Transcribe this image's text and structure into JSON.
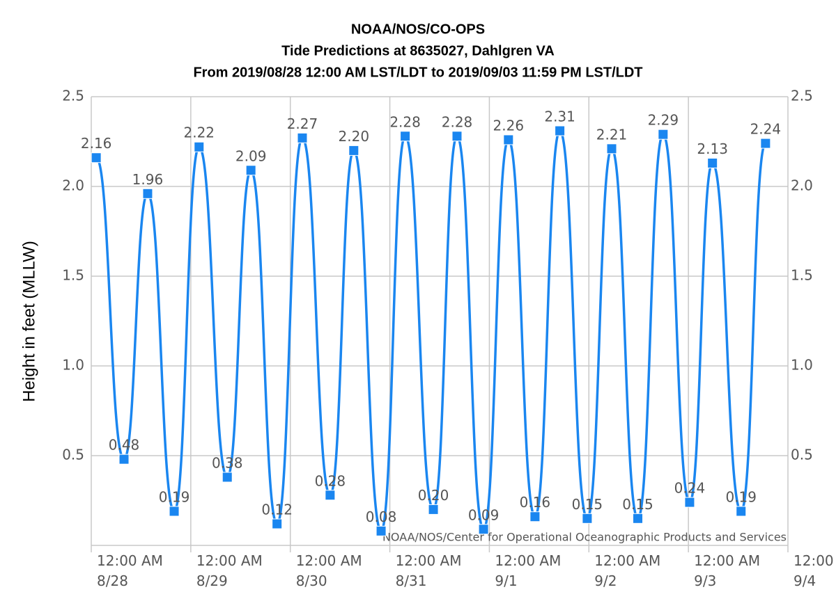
{
  "chart_data": {
    "type": "line",
    "title": "NOAA/NOS/CO-OPS",
    "subtitle": "Tide Predictions at 8635027, Dahlgren VA",
    "subtitle2": "From 2019/08/28 12:00 AM LST/LDT to 2019/09/03 11:59 PM LST/LDT",
    "y_label": "Height in feet (MLLW)",
    "credits": "NOAA/NOS/Center for Operational Oceanographic Products and Services",
    "x": [
      1.2,
      7.9,
      13.6,
      20.0,
      26.0,
      32.8,
      38.5,
      44.8,
      50.9,
      57.6,
      63.3,
      69.9,
      75.7,
      82.5,
      88.2,
      94.6,
      100.6,
      107.0,
      113.0,
      119.6,
      125.5,
      131.8,
      137.9,
      144.3,
      149.8,
      156.7,
      162.6
    ],
    "values": [
      2.16,
      0.48,
      1.96,
      0.19,
      2.22,
      0.38,
      2.09,
      0.12,
      2.27,
      0.28,
      2.2,
      0.08,
      2.28,
      0.2,
      2.28,
      0.09,
      2.26,
      0.16,
      2.31,
      0.15,
      2.21,
      0.15,
      2.29,
      0.24,
      2.13,
      0.19,
      2.24
    ],
    "value_labels": [
      "2.16",
      "0.48",
      "1.96",
      "0.19",
      "2.22",
      "0.38",
      "2.09",
      "0.12",
      "2.27",
      "0.28",
      "2.20",
      "0.08",
      "2.28",
      "0.20",
      "2.28",
      "0.09",
      "2.26",
      "0.16",
      "2.31",
      "0.15",
      "2.21",
      "0.15",
      "2.29",
      "0.24",
      "2.13",
      "0.19",
      "2.24"
    ],
    "color": "#1a86f0",
    "xlim": [
      0,
      168
    ],
    "xticks": [
      {
        "value": 0,
        "label": "12:00 AM\n8/28"
      },
      {
        "value": 24,
        "label": "12:00 AM\n8/29"
      },
      {
        "value": 48,
        "label": "12:00 AM\n8/30"
      },
      {
        "value": 72,
        "label": "12:00 AM\n8/31"
      },
      {
        "value": 96,
        "label": "12:00 AM\n9/1"
      },
      {
        "value": 120,
        "label": "12:00 AM\n9/2"
      },
      {
        "value": 144,
        "label": "12:00 AM\n9/3"
      },
      {
        "value": 168,
        "label": "12:00\n9/4"
      }
    ],
    "ylim": [
      0,
      2.5
    ],
    "yticks": [
      0.5,
      {
        "value": 1,
        "label": "1.0"
      },
      1.5,
      {
        "value": 2,
        "label": "2.0"
      },
      2.5
    ],
    "grid": true
  }
}
